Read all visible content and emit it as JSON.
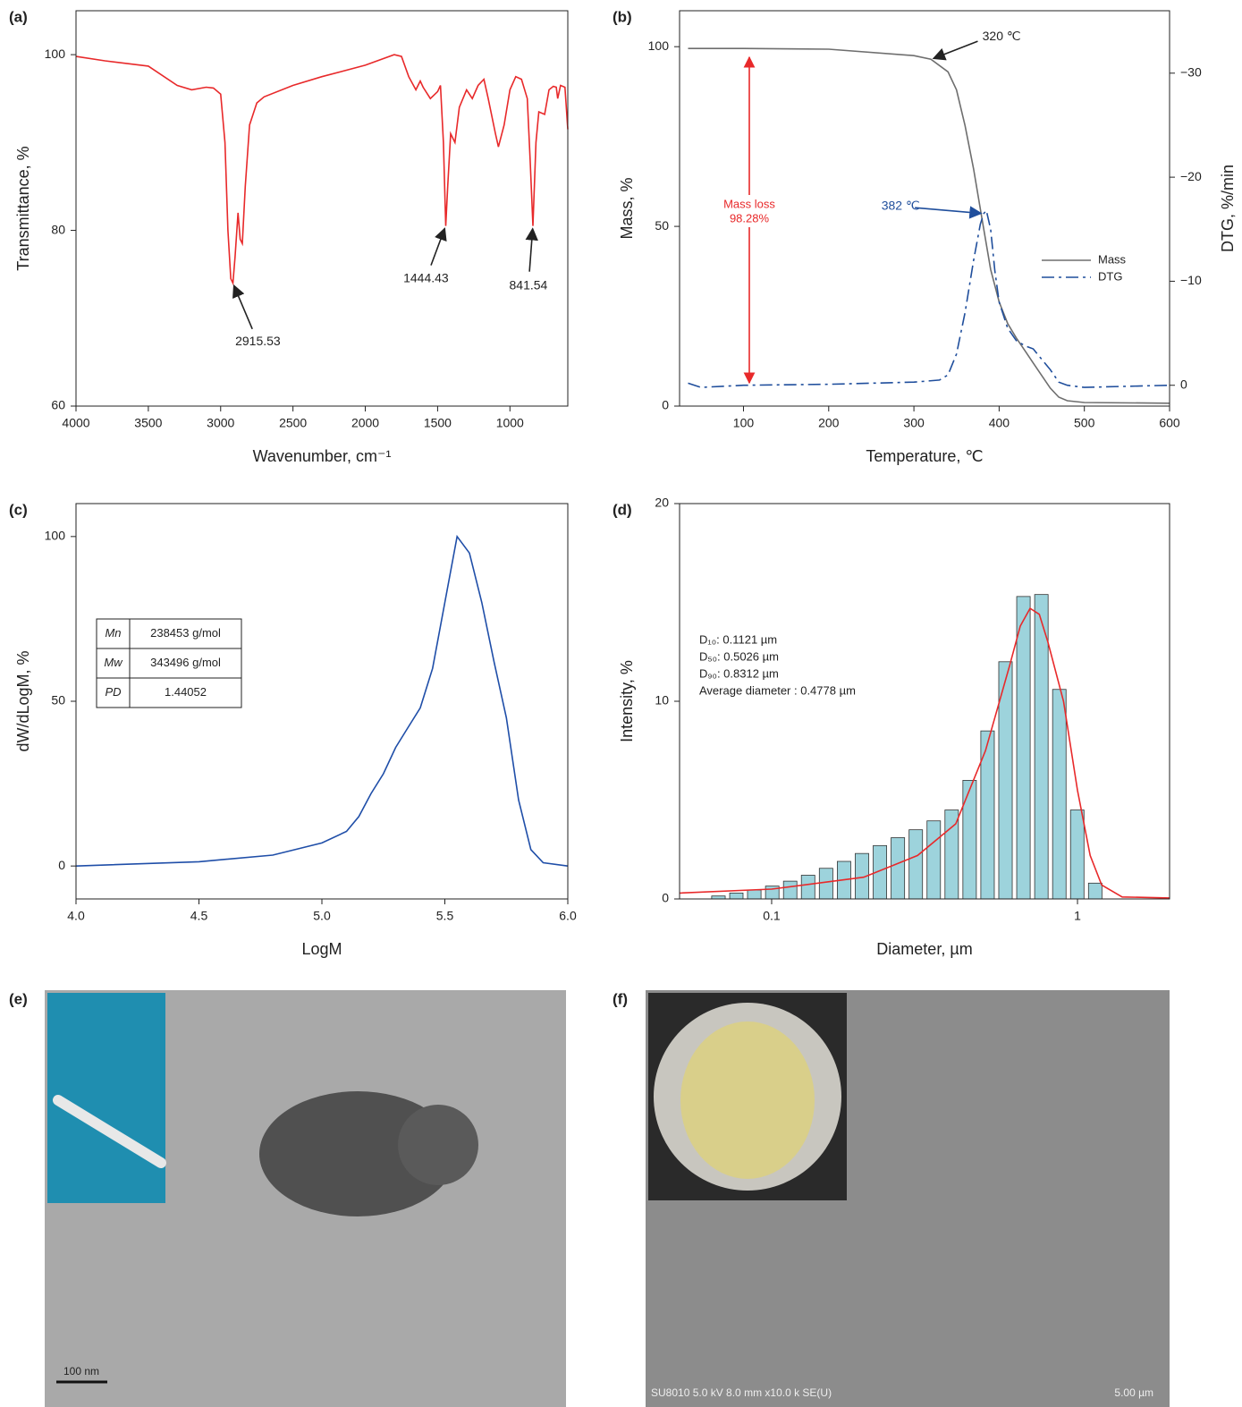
{
  "chart_data": [
    {
      "type": "line",
      "panel": "(a)",
      "xlabel": "Wavenumber, cm⁻¹",
      "ylabel": "Transmittance, %",
      "xlim": [
        4000,
        600
      ],
      "ylim": [
        60,
        105
      ],
      "xticks": [
        4000,
        3500,
        3000,
        2500,
        2000,
        1500,
        1000
      ],
      "yticks": [
        60,
        80,
        100
      ],
      "series": [
        {
          "color": "#e8292a",
          "x": [
            4000,
            3800,
            3500,
            3300,
            3200,
            3100,
            3050,
            3000,
            2970,
            2950,
            2930,
            2915,
            2900,
            2880,
            2865,
            2850,
            2830,
            2800,
            2750,
            2700,
            2500,
            2300,
            2000,
            1800,
            1750,
            1700,
            1650,
            1620,
            1600,
            1550,
            1500,
            1480,
            1460,
            1444,
            1430,
            1410,
            1380,
            1350,
            1300,
            1260,
            1220,
            1180,
            1150,
            1100,
            1080,
            1040,
            1000,
            960,
            920,
            880,
            860,
            841,
            820,
            800,
            760,
            730,
            700,
            680,
            670,
            650,
            620,
            600
          ],
          "values": [
            99.8,
            99.3,
            98.7,
            96.5,
            96,
            96.3,
            96.2,
            95.5,
            90,
            80,
            74.5,
            74,
            77,
            82,
            79,
            78.5,
            85,
            92,
            94.5,
            95.2,
            96.5,
            97.5,
            98.8,
            100,
            99.8,
            97.5,
            96,
            97,
            96.3,
            95,
            95.8,
            96.5,
            90,
            80.5,
            85,
            91,
            90,
            94,
            96,
            95,
            96.5,
            97.2,
            95,
            91,
            89.5,
            92,
            96,
            97.5,
            97.2,
            95,
            88,
            80.5,
            90,
            93.5,
            93.2,
            96,
            96.4,
            96.3,
            95,
            96.5,
            96.3,
            91.5
          ]
        }
      ],
      "annotations": [
        {
          "label": "2915.53",
          "x": 2915.53,
          "y": 74,
          "color": "#222222"
        },
        {
          "label": "1444.43",
          "x": 1444.43,
          "y": 80.5,
          "color": "#222222"
        },
        {
          "label": "841.54",
          "x": 841.54,
          "y": 80.5,
          "color": "#222222"
        }
      ]
    },
    {
      "type": "line",
      "panel": "(b)",
      "xlabel": "Temperature, ℃",
      "ylabel": "Mass, %",
      "y2label": "DTG, %/min",
      "xlim": [
        25,
        600
      ],
      "ylim": [
        0,
        110
      ],
      "y2lim": [
        2,
        -36
      ],
      "xticks": [
        100,
        200,
        300,
        400,
        500,
        600
      ],
      "yticks": [
        0,
        50,
        100
      ],
      "y2ticks": [
        {
          "value": -30,
          "label": "−30"
        },
        {
          "value": -20,
          "label": "−20"
        },
        {
          "value": -10,
          "label": "−10"
        },
        0
      ],
      "legend": "right",
      "series": [
        {
          "name": "Mass",
          "color": "#6e6e6e",
          "x": [
            35,
            100,
            200,
            300,
            320,
            340,
            350,
            360,
            370,
            380,
            390,
            400,
            410,
            420,
            430,
            440,
            450,
            460,
            470,
            480,
            500,
            600
          ],
          "values": [
            99.5,
            99.5,
            99.3,
            97.5,
            96.5,
            93,
            88,
            78,
            66,
            52,
            38,
            29,
            23,
            19,
            15.5,
            12,
            8.5,
            5,
            2.5,
            1.5,
            1,
            0.8
          ]
        },
        {
          "name": "DTG",
          "color": "#1f4e9c",
          "axis": "y2",
          "dash": "dash-dot",
          "x": [
            35,
            50,
            100,
            200,
            300,
            330,
            340,
            350,
            360,
            370,
            378,
            382,
            385,
            390,
            395,
            400,
            410,
            420,
            430,
            440,
            450,
            460,
            470,
            480,
            500,
            600
          ],
          "values": [
            -0.2,
            0.2,
            0,
            -0.1,
            -0.3,
            -0.5,
            -1,
            -3,
            -7,
            -12,
            -15.5,
            -16.5,
            -16.8,
            -15,
            -11,
            -8,
            -5.5,
            -4.3,
            -3.8,
            -3.5,
            -2.5,
            -1.5,
            -0.3,
            0,
            0.2,
            0
          ]
        }
      ],
      "annotations": [
        {
          "label": "320 ℃",
          "x": 320,
          "y": 96.5,
          "color": "#222222"
        },
        {
          "label": "382 ℃",
          "x": 382,
          "y": -16.5,
          "axis": "y2",
          "color": "#1f4e9c"
        }
      ],
      "notes": [
        {
          "text": "Mass loss",
          "color": "#e8292a"
        },
        {
          "text": "98.28%",
          "color": "#e8292a"
        }
      ]
    },
    {
      "type": "line",
      "panel": "(c)",
      "xlabel": "LogM",
      "ylabel": "dW/dLogM, %",
      "xlim": [
        4,
        6
      ],
      "ylim": [
        -10,
        110
      ],
      "xticks": [
        {
          "value": 4,
          "label": "4.0"
        },
        4.5,
        {
          "value": 5,
          "label": "5.0"
        },
        5.5,
        {
          "value": 6,
          "label": "6.0"
        }
      ],
      "yticks": [
        0,
        50,
        100
      ],
      "series": [
        {
          "color": "#1f4ea8",
          "x": [
            4.0,
            4.5,
            4.8,
            5.0,
            5.1,
            5.15,
            5.2,
            5.25,
            5.3,
            5.35,
            5.4,
            5.45,
            5.5,
            5.55,
            5.6,
            5.65,
            5.7,
            5.75,
            5.8,
            5.85,
            5.9,
            6.0
          ],
          "values": [
            0,
            1.3,
            3.3,
            7,
            10.5,
            15,
            22,
            28,
            36,
            42,
            48,
            60,
            80,
            100,
            95,
            80,
            62,
            45,
            20,
            5,
            1,
            0
          ]
        }
      ],
      "table": [
        [
          "Mn",
          "238453 g/mol"
        ],
        [
          "Mw",
          "343496 g/mol"
        ],
        [
          "PD",
          "1.44052"
        ]
      ]
    },
    {
      "type": "histogram",
      "panel": "(d)",
      "xlabel": "Diameter, µm",
      "ylabel": "Intensity, %",
      "xscale": "log",
      "xlim": [
        0.05,
        2
      ],
      "ylim": [
        0,
        20
      ],
      "xticks": [
        0.1,
        1
      ],
      "yticks": [
        0,
        10,
        20
      ],
      "color": "#9dd3dc",
      "bins": [
        0.0626,
        0.0717,
        0.082,
        0.0939,
        0.1075,
        0.123,
        0.1408,
        0.1612,
        0.1845,
        0.2112,
        0.2417,
        0.2767,
        0.3167,
        0.3625,
        0.4149,
        0.4749,
        0.5436,
        0.6222,
        0.7122,
        0.8152,
        0.9331,
        1.068,
        1.2225
      ],
      "values": [
        0.15,
        0.3,
        0.45,
        0.65,
        0.9,
        1.2,
        1.55,
        1.9,
        2.3,
        2.7,
        3.1,
        3.5,
        3.95,
        4.5,
        6.0,
        8.5,
        12.0,
        15.3,
        15.4,
        10.6,
        4.5,
        0.8
      ],
      "fit": {
        "color": "#e8292a",
        "x": [
          0.05,
          0.1,
          0.2,
          0.3,
          0.4,
          0.5,
          0.6,
          0.65,
          0.7,
          0.75,
          0.8,
          0.9,
          1.0,
          1.1,
          1.2,
          1.4,
          2
        ],
        "values": [
          0.3,
          0.5,
          1.1,
          2.2,
          3.8,
          7.5,
          11.8,
          13.8,
          14.7,
          14.4,
          13.0,
          10,
          5.5,
          2.2,
          0.7,
          0.1,
          0.05
        ]
      },
      "notes": [
        "D₁₀: 0.1121 µm",
        "D₅₀: 0.5026 µm",
        "D₉₀: 0.8312 µm",
        "Average diameter : 0.4778 µm"
      ]
    }
  ],
  "images": [
    {
      "panel": "(e)",
      "scale_bar": "100 nm"
    },
    {
      "panel": "(f)",
      "info": "SU8010 5.0 kV 8.0 mm x10.0 k SE(U)",
      "scale_bar": "5.00 µm"
    }
  ]
}
